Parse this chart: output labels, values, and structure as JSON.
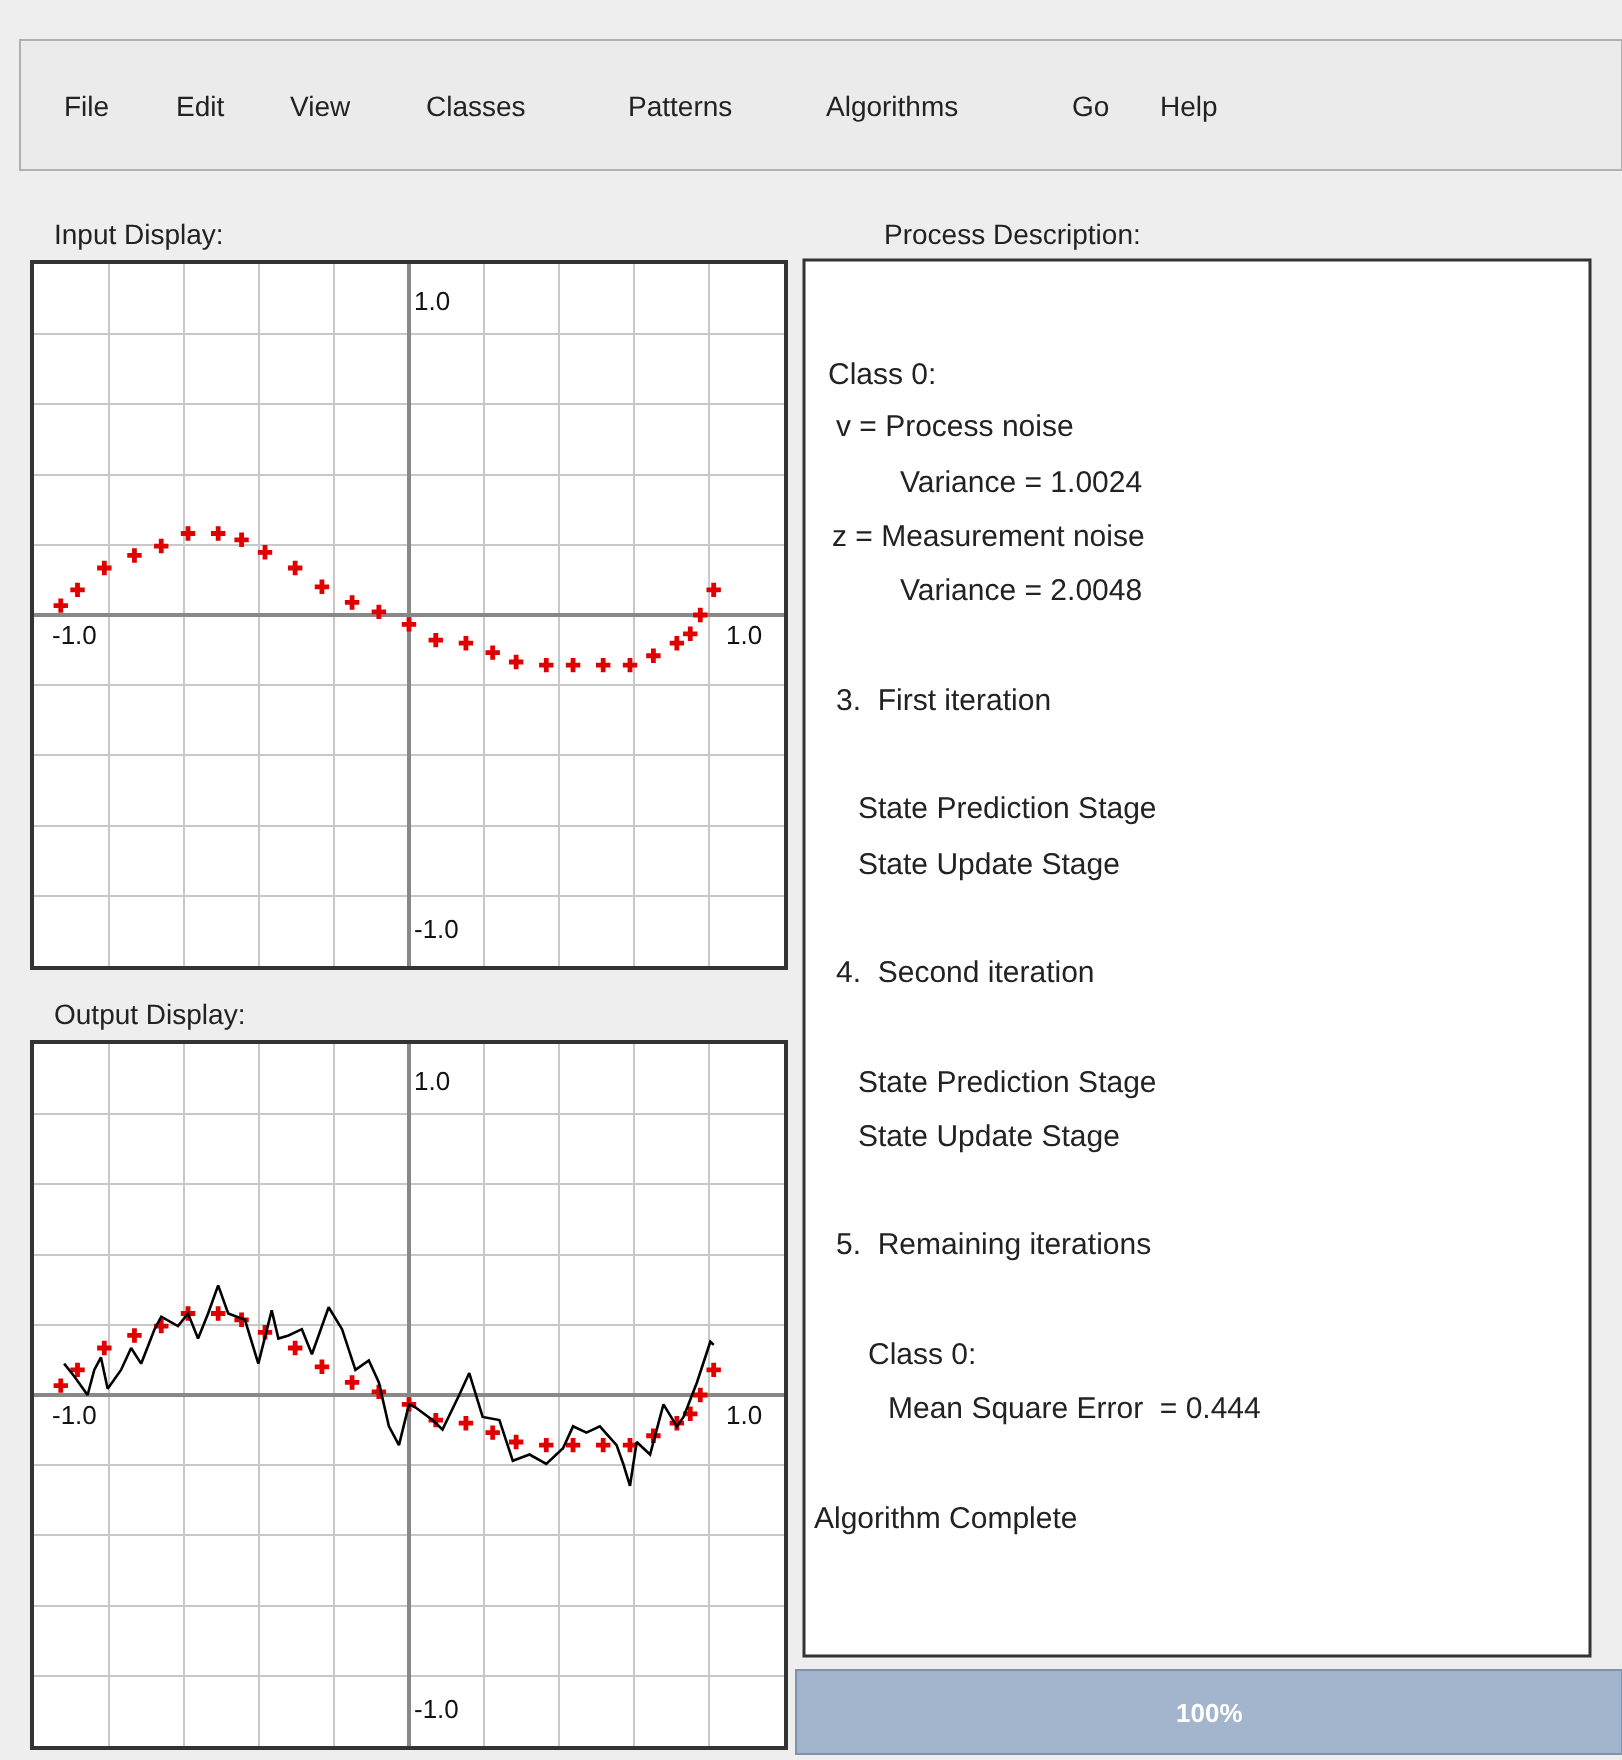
{
  "chart_data": [
    {
      "type": "other",
      "annotations": [
        "File",
        "Edit",
        "View",
        "Classes",
        "Patterns",
        "Algorithms",
        "Go",
        "Help"
      ]
    },
    {
      "type": "scatter",
      "title": "Input Display:",
      "xlim": [
        -1.12,
        1.12
      ],
      "ylim": [
        -1.12,
        1.12
      ],
      "xticks": [
        {
          "value": -1,
          "label": "-1.0"
        },
        {
          "value": -0.896,
          "label": null
        },
        {
          "value": -0.672,
          "label": null
        },
        {
          "value": -0.448,
          "label": null
        },
        {
          "value": -0.224,
          "label": null
        },
        {
          "value": 0,
          "label": null
        },
        {
          "value": 0.224,
          "label": null
        },
        {
          "value": 0.448,
          "label": null
        },
        {
          "value": 0.672,
          "label": null
        },
        {
          "value": 0.896,
          "label": null
        },
        {
          "value": 1,
          "label": "1.0"
        }
      ],
      "yticks": [
        {
          "value": -1,
          "label": "-1.0"
        },
        {
          "value": -0.896,
          "label": null
        },
        {
          "value": -0.672,
          "label": null
        },
        {
          "value": -0.448,
          "label": null
        },
        {
          "value": -0.224,
          "label": null
        },
        {
          "value": 0,
          "label": null
        },
        {
          "value": 0.224,
          "label": null
        },
        {
          "value": 0.448,
          "label": null
        },
        {
          "value": 0.672,
          "label": null
        },
        {
          "value": 0.896,
          "label": null
        },
        {
          "value": 1,
          "label": "1.0"
        }
      ],
      "grid": true,
      "marker": "cross",
      "series": [
        {
          "color": "#e00000",
          "x": [
            -1.04,
            -0.99,
            -0.91,
            -0.82,
            -0.74,
            -0.66,
            -0.57,
            -0.5,
            -0.43,
            -0.34,
            -0.26,
            -0.17,
            -0.09,
            0.0,
            0.08,
            0.17,
            0.25,
            0.32,
            0.41,
            0.49,
            0.58,
            0.66,
            0.73,
            0.8,
            0.84,
            0.87,
            0.91
          ],
          "values": [
            0.03,
            0.08,
            0.15,
            0.19,
            0.22,
            0.26,
            0.26,
            0.24,
            0.2,
            0.15,
            0.09,
            0.04,
            0.01,
            -0.03,
            -0.08,
            -0.09,
            -0.12,
            -0.15,
            -0.16,
            -0.16,
            -0.16,
            -0.16,
            -0.13,
            -0.09,
            -0.06,
            0.0,
            0.08
          ]
        }
      ]
    },
    {
      "type": "scatter",
      "title": "Output Display:",
      "xlim": [
        -1.12,
        1.12
      ],
      "ylim": [
        -1.12,
        1.12
      ],
      "xticks": [
        {
          "value": -1,
          "label": "-1.0"
        },
        {
          "value": -0.896,
          "label": null
        },
        {
          "value": -0.672,
          "label": null
        },
        {
          "value": -0.448,
          "label": null
        },
        {
          "value": -0.224,
          "label": null
        },
        {
          "value": 0,
          "label": null
        },
        {
          "value": 0.224,
          "label": null
        },
        {
          "value": 0.448,
          "label": null
        },
        {
          "value": 0.672,
          "label": null
        },
        {
          "value": 0.896,
          "label": null
        },
        {
          "value": 1,
          "label": "1.0"
        }
      ],
      "yticks": [
        {
          "value": -1,
          "label": "-1.0"
        },
        {
          "value": -0.896,
          "label": null
        },
        {
          "value": -0.672,
          "label": null
        },
        {
          "value": -0.448,
          "label": null
        },
        {
          "value": -0.224,
          "label": null
        },
        {
          "value": 0,
          "label": null
        },
        {
          "value": 0.224,
          "label": null
        },
        {
          "value": 0.448,
          "label": null
        },
        {
          "value": 0.672,
          "label": null
        },
        {
          "value": 0.896,
          "label": null
        },
        {
          "value": 1,
          "label": "1.0"
        }
      ],
      "grid": true,
      "marker": "cross",
      "series": [
        {
          "color": "#e00000",
          "x": [
            -1.04,
            -0.99,
            -0.91,
            -0.82,
            -0.74,
            -0.66,
            -0.57,
            -0.5,
            -0.43,
            -0.34,
            -0.26,
            -0.17,
            -0.09,
            0.0,
            0.08,
            0.17,
            0.25,
            0.32,
            0.41,
            0.49,
            0.58,
            0.66,
            0.73,
            0.8,
            0.84,
            0.87,
            0.91
          ],
          "values": [
            0.03,
            0.08,
            0.15,
            0.19,
            0.22,
            0.26,
            0.26,
            0.24,
            0.2,
            0.15,
            0.09,
            0.04,
            0.01,
            -0.03,
            -0.08,
            -0.09,
            -0.12,
            -0.15,
            -0.16,
            -0.16,
            -0.16,
            -0.16,
            -0.13,
            -0.09,
            -0.06,
            0.0,
            0.08
          ]
        },
        {
          "type": "line",
          "marker": "none",
          "line_style": "solid",
          "color": "#000000",
          "x": [
            -1.03,
            -1.0,
            -0.96,
            -0.94,
            -0.92,
            -0.9,
            -0.86,
            -0.83,
            -0.8,
            -0.76,
            -0.74,
            -0.69,
            -0.66,
            -0.63,
            -0.6,
            -0.57,
            -0.54,
            -0.49,
            -0.45,
            -0.41,
            -0.39,
            -0.36,
            -0.32,
            -0.29,
            -0.27,
            -0.24,
            -0.2,
            -0.16,
            -0.12,
            -0.09,
            -0.06,
            -0.03,
            0.0,
            0.02,
            0.07,
            0.1,
            0.15,
            0.18,
            0.22,
            0.27,
            0.31,
            0.36,
            0.41,
            0.46,
            0.49,
            0.53,
            0.57,
            0.62,
            0.64,
            0.66,
            0.68,
            0.72,
            0.76,
            0.8,
            0.82,
            0.86,
            0.9,
            0.91
          ],
          "values": [
            0.1,
            0.06,
            0.0,
            0.08,
            0.12,
            0.02,
            0.08,
            0.15,
            0.1,
            0.21,
            0.25,
            0.22,
            0.26,
            0.18,
            0.26,
            0.35,
            0.26,
            0.24,
            0.1,
            0.27,
            0.18,
            0.19,
            0.21,
            0.13,
            0.19,
            0.28,
            0.21,
            0.08,
            0.11,
            0.04,
            -0.1,
            -0.16,
            -0.03,
            -0.04,
            -0.08,
            -0.11,
            0.0,
            0.07,
            -0.07,
            -0.08,
            -0.21,
            -0.19,
            -0.22,
            -0.17,
            -0.1,
            -0.12,
            -0.1,
            -0.16,
            -0.22,
            -0.29,
            -0.15,
            -0.19,
            -0.03,
            -0.1,
            -0.07,
            0.04,
            0.17,
            0.16
          ]
        }
      ]
    },
    {
      "type": "other",
      "title": "Process Description:",
      "annotations": [
        "Class 0:",
        "v = Process noise",
        "Variance = 1.0024",
        "z = Measurement noise",
        "Variance = 2.0048",
        "3.  First iteration",
        "State Prediction Stage",
        "State Update Stage",
        "4.  Second iteration",
        "State Prediction Stage",
        "State Update Stage",
        "5.  Remaining iterations",
        "Class 0:",
        "Mean Square Error  = 0.444",
        "Algorithm Complete",
        "100%"
      ]
    }
  ]
}
